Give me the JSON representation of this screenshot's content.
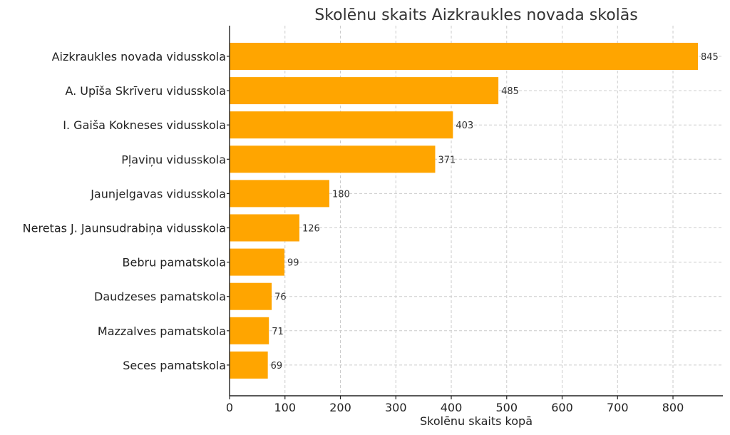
{
  "chart_data": {
    "type": "bar",
    "orientation": "horizontal",
    "title": "Skolēnu skaits Aizkraukles novada skolās",
    "xlabel": "Skolēnu skaits kopā",
    "ylabel": "",
    "categories": [
      "Aizkraukles novada vidusskola",
      "A. Upīša Skrīveru vidusskola",
      "I. Gaiša Kokneses vidusskola",
      "Pļaviņu vidusskola",
      "Jaunjelgavas vidusskola",
      "Neretas J. Jaunsudrabiņa vidusskola",
      "Bebru pamatskola",
      "Daudzeses pamatskola",
      "Mazzalves pamatskola",
      "Seces pamatskola"
    ],
    "values": [
      845,
      485,
      403,
      371,
      180,
      126,
      99,
      76,
      71,
      69
    ],
    "xlim": [
      0,
      890
    ],
    "xticks": [
      0,
      100,
      200,
      300,
      400,
      500,
      600,
      700,
      800
    ],
    "grid": true,
    "bar_color": "#FFA500",
    "data_labels": true
  }
}
